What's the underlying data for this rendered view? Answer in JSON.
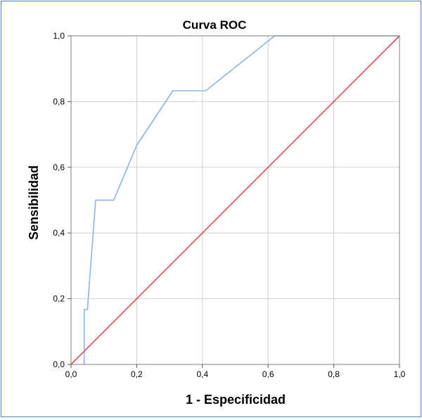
{
  "chart_data": {
    "type": "line",
    "title": "Curva ROC",
    "xlabel": "1 - Especificidad",
    "ylabel": "Sensibilidad",
    "xlim": [
      0,
      1
    ],
    "ylim": [
      0,
      1
    ],
    "grid": true,
    "x_ticks": [
      "0,0",
      "0,2",
      "0,4",
      "0,6",
      "0,8",
      "1,0"
    ],
    "y_ticks": [
      "0,0",
      "0,2",
      "0,4",
      "0,6",
      "0,8",
      "1,0"
    ],
    "series": [
      {
        "color": "#8db3e2",
        "points": [
          [
            0.04,
            0.0
          ],
          [
            0.04,
            0.167
          ],
          [
            0.05,
            0.167
          ],
          [
            0.075,
            0.5
          ],
          [
            0.13,
            0.5
          ],
          [
            0.2,
            0.667
          ],
          [
            0.31,
            0.833
          ],
          [
            0.41,
            0.833
          ],
          [
            0.62,
            1.0
          ],
          [
            1.0,
            1.0
          ]
        ]
      },
      {
        "color": "#e4475a",
        "points": [
          [
            0.0,
            0.0
          ],
          [
            1.0,
            1.0
          ]
        ]
      }
    ]
  }
}
